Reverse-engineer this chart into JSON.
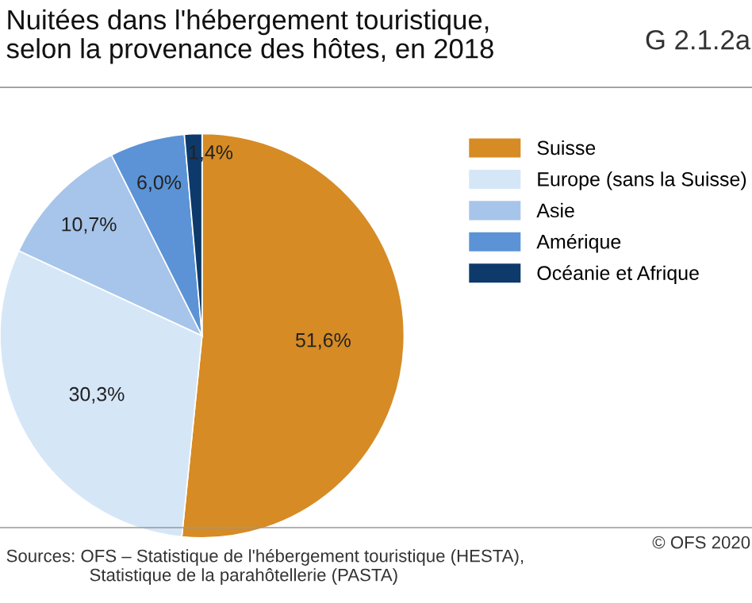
{
  "chart_data": {
    "type": "pie",
    "title": "Nuitées dans l'hébergement touristique,\nselon la provenance des hôtes, en 2018",
    "categories": [
      "Suisse",
      "Europe (sans la Suisse)",
      "Asie",
      "Amérique",
      "Océanie et Afrique"
    ],
    "values": [
      51.6,
      30.3,
      10.7,
      6.0,
      1.4
    ],
    "colors": [
      "#d68b25",
      "#d5e6f7",
      "#a7c5ea",
      "#5b93d6",
      "#0d3a6b"
    ],
    "value_labels": [
      "51,6%",
      "30,3%",
      "10,7%",
      "6,0%",
      "1,4%"
    ],
    "legend": "right",
    "annotations": [
      "G 2.1.2a",
      "Sources: OFS – Statistique de l'hébergement touristique (HESTA),\n                 Statistique de la parahôtellerie (PASTA)",
      "© OFS 2020"
    ]
  }
}
